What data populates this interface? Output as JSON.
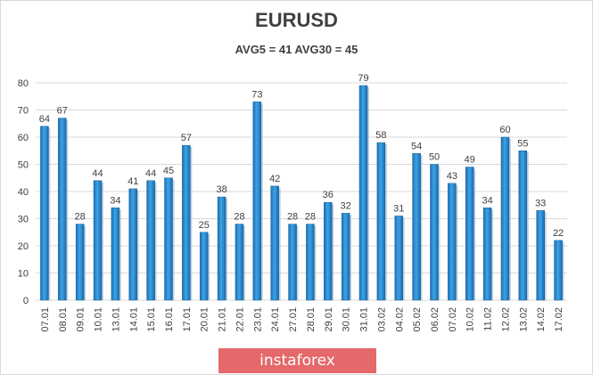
{
  "chart_data": {
    "type": "bar",
    "title": "EURUSD",
    "subtitle": "AVG5 = 41 AVG30 = 45",
    "xlabel": "",
    "ylabel": "",
    "ylim": [
      0,
      80
    ],
    "yticks": [
      "0",
      "10",
      "20",
      "30",
      "40",
      "50",
      "60",
      "70",
      "80"
    ],
    "grid": true,
    "legend": "none",
    "categories": [
      "07.01",
      "08.01",
      "09.01",
      "10.01",
      "13.01",
      "14.01",
      "15.01",
      "16.01",
      "17.01",
      "20.01",
      "21.01",
      "22.01",
      "23.01",
      "24.01",
      "27.01",
      "28.01",
      "29.01",
      "30.01",
      "31.01",
      "03.02",
      "04.02",
      "05.02",
      "06.02",
      "07.02",
      "10.02",
      "11.02",
      "12.02",
      "13.02",
      "14.02",
      "17.02"
    ],
    "values": [
      64,
      67,
      28,
      44,
      34,
      41,
      44,
      45,
      57,
      25,
      38,
      28,
      73,
      42,
      28,
      28,
      36,
      32,
      79,
      58,
      31,
      54,
      50,
      43,
      49,
      34,
      60,
      55,
      33,
      22
    ],
    "bar_color": "#2e8fd4"
  },
  "watermark": {
    "text": "instaforex",
    "color": "#e5686a"
  }
}
